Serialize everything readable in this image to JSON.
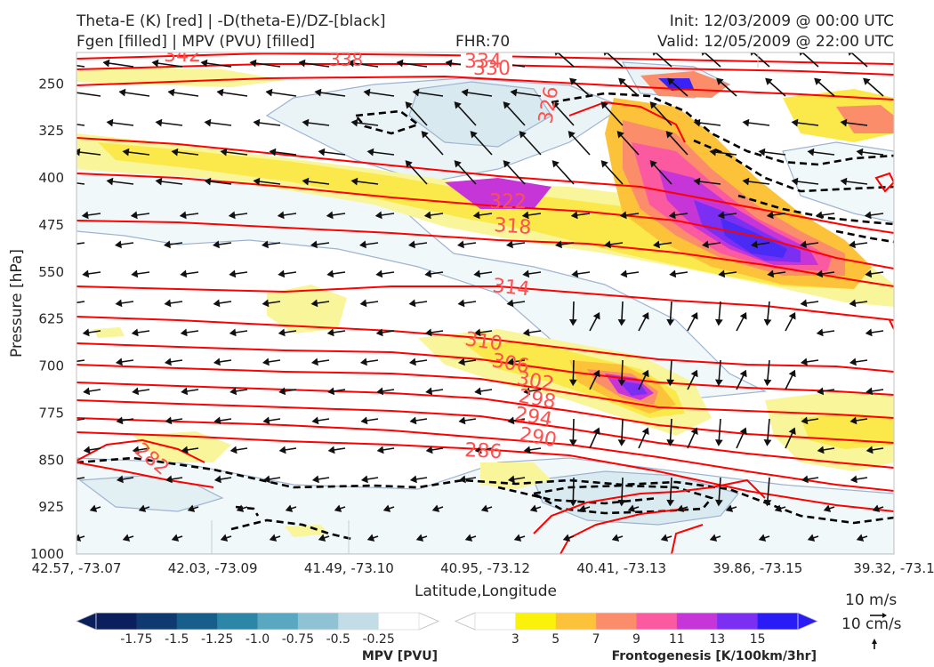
{
  "header": {
    "title_line1": "Theta-E (K) [red] | -D(theta-E)/DZ-[black]",
    "title_line2": "Fgen [filled] | MPV (PVU) [filled]",
    "fhr": "FHR:70",
    "init": "Init: 12/03/2009 @ 00:00 UTC",
    "valid": "Valid: 12/05/2009 @ 22:00 UTC"
  },
  "chart_data": {
    "type": "contour",
    "xlabel": "Latitude,Longitude",
    "ylabel": "Pressure [hPa]",
    "y_scale": "linear, inverted",
    "ylim": [
      1000,
      200
    ],
    "y_ticks": [
      250,
      325,
      400,
      475,
      550,
      625,
      700,
      775,
      850,
      925,
      1000
    ],
    "x_ticks": [
      "42.57, -73.07",
      "42.03, -73.09",
      "41.49, -73.10",
      "40.95, -73.12",
      "40.41, -73.13",
      "39.86, -73.15",
      "39.32, -73.1"
    ],
    "theta_e_labels": [
      "342",
      "338",
      "334",
      "330",
      "326",
      "322",
      "318",
      "314",
      "310",
      "306",
      "302",
      "298",
      "294",
      "290",
      "286",
      "282"
    ],
    "colors": {
      "theta_e": "#ff0000",
      "dthetae_dz": "#000000",
      "mpv_outline": "#9fb3d1"
    },
    "mpv_colorbar": {
      "label": "MPV [PVU]",
      "ticks": [
        "-1.75",
        "-1.5",
        "-1.25",
        "-1.0",
        "-0.75",
        "-0.5",
        "-0.25"
      ],
      "colors": [
        "#0b1f5c",
        "#0e3a70",
        "#175f8a",
        "#2b86a8",
        "#5aa7c1",
        "#8fc3d4",
        "#c3dde6",
        "#ffffff"
      ]
    },
    "fgen_colorbar": {
      "label": "Frontogenesis [K/100km/3hr]",
      "ticks": [
        "3",
        "5",
        "7",
        "9",
        "11",
        "13",
        "15"
      ],
      "colors": [
        "#ffffff",
        "#fbf20b",
        "#fcc33a",
        "#fb8d6b",
        "#fb5aa0",
        "#c535d8",
        "#7a2ff2",
        "#2a1cf5"
      ]
    },
    "vector_keys": [
      "10 m/s",
      "10 cm/s"
    ]
  }
}
